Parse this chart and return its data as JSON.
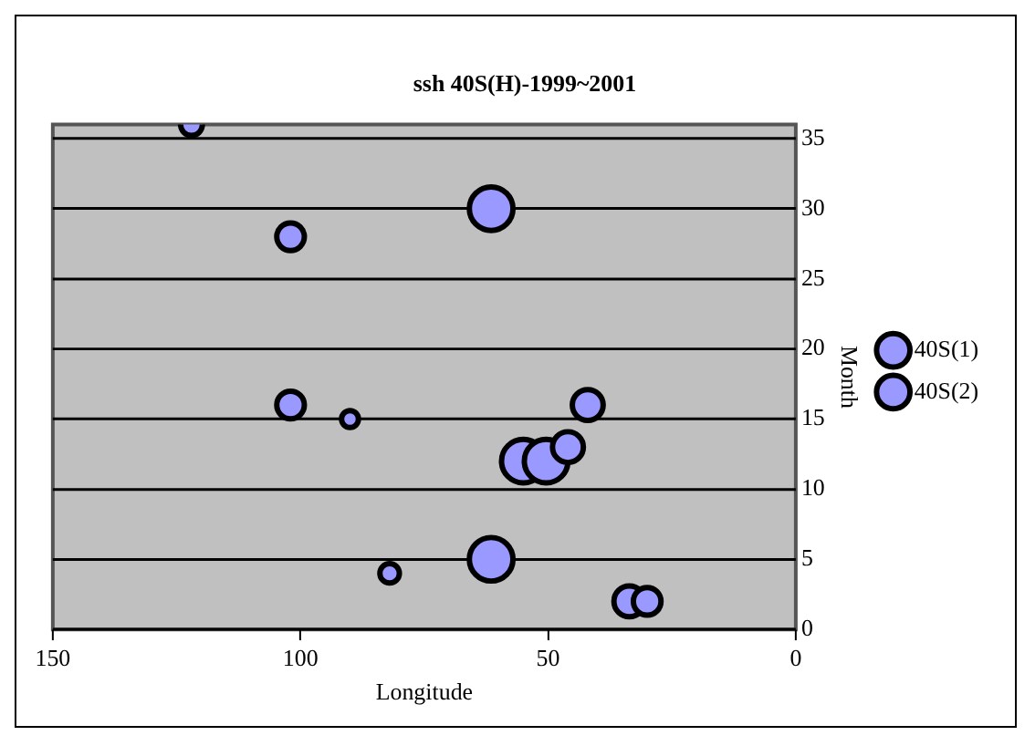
{
  "chart_data": {
    "type": "bubble",
    "title": "ssh 40S(H)-1999~2001",
    "xlabel": "Longitude",
    "ylabel": "Month",
    "xlim": [
      150,
      0
    ],
    "xticks": [
      150,
      100,
      50,
      0
    ],
    "ylim": [
      0,
      36
    ],
    "yticks": [
      0,
      5,
      10,
      15,
      20,
      25,
      30,
      35
    ],
    "grid": "y",
    "legend": "right",
    "series": [
      {
        "name": "40S(1)",
        "color": "#9999ff",
        "x": [
          82,
          61.5,
          33.6,
          30,
          55,
          50.4,
          46
        ],
        "values": [
          4,
          5,
          2,
          2,
          12,
          12,
          13
        ],
        "sizes": [
          0.2,
          1,
          0.5,
          0.4,
          1,
          1,
          0.5
        ]
      },
      {
        "name": "40S(2)",
        "color": "#9999ff",
        "x": [
          102,
          90,
          42,
          102,
          61.5,
          122
        ],
        "values": [
          16,
          15,
          16,
          28,
          30,
          36
        ],
        "sizes": [
          0.4,
          0.15,
          0.5,
          0.4,
          1,
          0.25
        ]
      }
    ]
  }
}
